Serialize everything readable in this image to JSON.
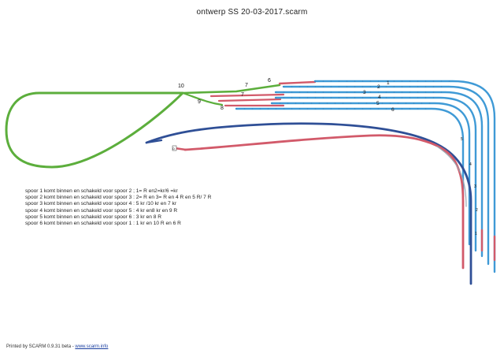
{
  "title": "ontwerp SS 20-03-2017.scarm",
  "notes": [
    "spoor 1 komt binnen en schakeld voor spoor 2 ; 1= R en2=kr/6 =kr",
    "spoor 2 komt binnen en schakeld voor spoor 3 : 2= R en 3= R en 4 R en 5 R/ 7 R",
    "spoor 3 komt binnen en schakeld voor spoor 4 : 5 kr /10 kr en 7 kr",
    "spoor 4 komt binnen en schakeld voor spoor 5 : 4 kr en8 kr en 9 R",
    "spoor 5 komt binnen en schakeld voor spoor 6 : 3 kr en 8 R",
    "spoor 6 komt binnen en schakeld voor spoor 1 : 1 kr en 10 R en 6 R"
  ],
  "footer": {
    "prefix": "Printed by SCARM 0.9.31 beta - ",
    "link": "www.scarm.info"
  },
  "labels": {
    "switch_10": "10",
    "switch_7a": "7",
    "switch_6": "6",
    "switch_7b": "7",
    "switch_9": "9",
    "switch_8": "8",
    "track_1": "1",
    "track_2": "2",
    "track_3": "3",
    "track_4": "4",
    "track_5": "5",
    "track_6": "6",
    "marker_5": "5",
    "marker_4": "4",
    "marker_3": "3",
    "marker_2": "2",
    "marker_1": "1",
    "buffer_label": "D"
  },
  "colors": {
    "green": "#5cae3c",
    "blue": "#3f9ad6",
    "red": "#d25a6a",
    "dark_blue": "#2f4f96"
  }
}
